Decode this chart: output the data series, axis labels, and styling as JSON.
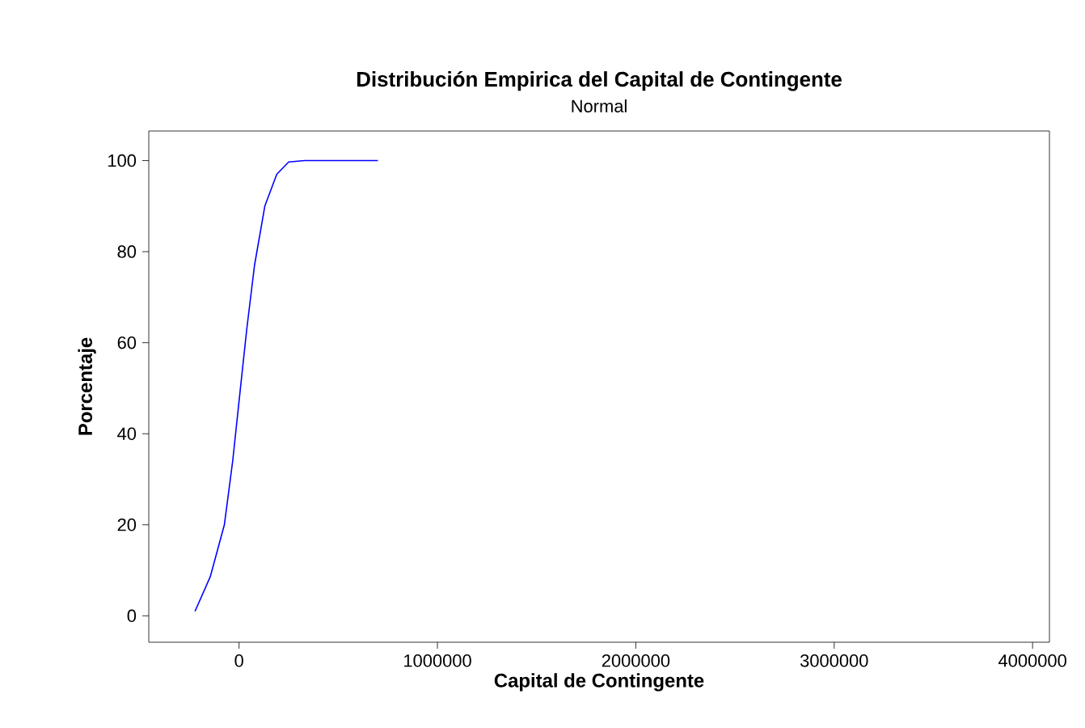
{
  "chart_data": {
    "type": "line",
    "title": "Distribución Empirica del Capital de Contingente",
    "subtitle": "Normal",
    "xlabel": "Capital de Contingente",
    "ylabel": "Porcentaje",
    "x": [
      -222000,
      -145000,
      -74000,
      -32000,
      7000,
      39000,
      78000,
      130000,
      190000,
      250000,
      331000,
      700000
    ],
    "series": [
      {
        "color": "#0000ff",
        "values": [
          1,
          8.6,
          20,
          34,
          50,
          63,
          77,
          90,
          97,
          99.7,
          100,
          100
        ]
      }
    ],
    "xlim": [
      -455000,
      4085000
    ],
    "ylim": [
      -5.8,
      106.5
    ],
    "xticks": [
      0,
      1000000,
      2000000,
      3000000,
      4000000
    ],
    "yticks": [
      0,
      20,
      40,
      60,
      80,
      100
    ],
    "marker": "none",
    "line_style": "solid"
  }
}
